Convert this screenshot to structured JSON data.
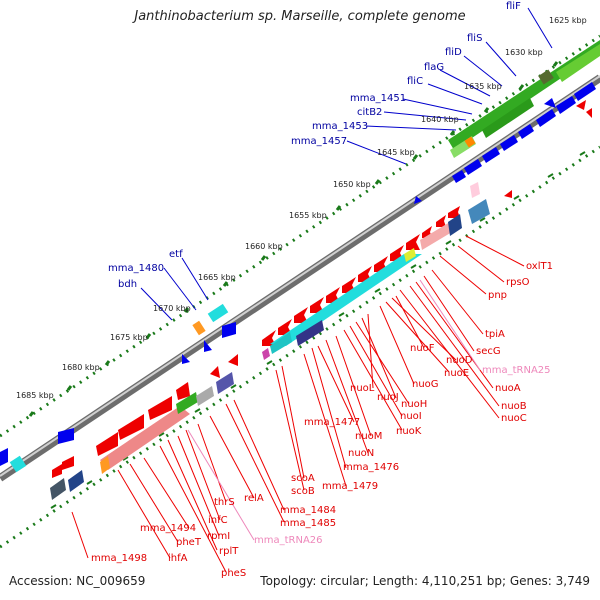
{
  "title": "Janthinobacterium sp. Marseille, complete genome",
  "footer": {
    "accession_label": "Accession:",
    "accession": "NC_009659",
    "topology_label": "Topology:",
    "topology": "circular;",
    "length_label": "Length:",
    "length": "4,110,251 bp;",
    "genes_label": "Genes:",
    "genes": "3,749"
  },
  "colors": {
    "backbone": "#808080",
    "forward_gene": "#0000ff",
    "reverse_gene": "#ff0000",
    "forward_label": "#0000a0",
    "reverse_label": "#e00000",
    "rna_label": "#ee88bb",
    "ticks": "#1a7a1a",
    "cog_green": "#33aa22",
    "cog_cyan": "#22dddd",
    "cog_pink": "#ee8888"
  },
  "kbp_ticks": [
    "1625 kbp",
    "1630 kbp",
    "1635 kbp",
    "1640 kbp",
    "1645 kbp",
    "1650 kbp",
    "1655 kbp",
    "1660 kbp",
    "1665 kbp",
    "1670 kbp",
    "1675 kbp",
    "1680 kbp",
    "1685 kbp"
  ],
  "forward_labels": [
    "fliF",
    "fliS",
    "fliD",
    "flaG",
    "fliC",
    "mma_1451",
    "citB2",
    "mma_1453",
    "mma_1457",
    "etf",
    "mma_1480",
    "bdh"
  ],
  "reverse_labels_right": [
    "oxlT1",
    "rpsO",
    "pnp",
    "tpiA",
    "secG",
    "mma_tRNA25",
    "nuoA",
    "nuoB",
    "nuoC",
    "nuoF",
    "nuoD",
    "nuoE",
    "nuoG",
    "nuoL",
    "nuoJ",
    "nuoH",
    "nuoI",
    "nuoK",
    "nuoM",
    "nuoN",
    "mma_1477",
    "mma_1476",
    "mma_1479",
    "scoA",
    "scoB",
    "mma_1484",
    "mma_1485",
    "relA",
    "thrS",
    "infC",
    "rpmI",
    "rplT",
    "pheS",
    "mma_tRNA26",
    "mma_1494",
    "pheT",
    "ihfA",
    "mma_1498"
  ]
}
